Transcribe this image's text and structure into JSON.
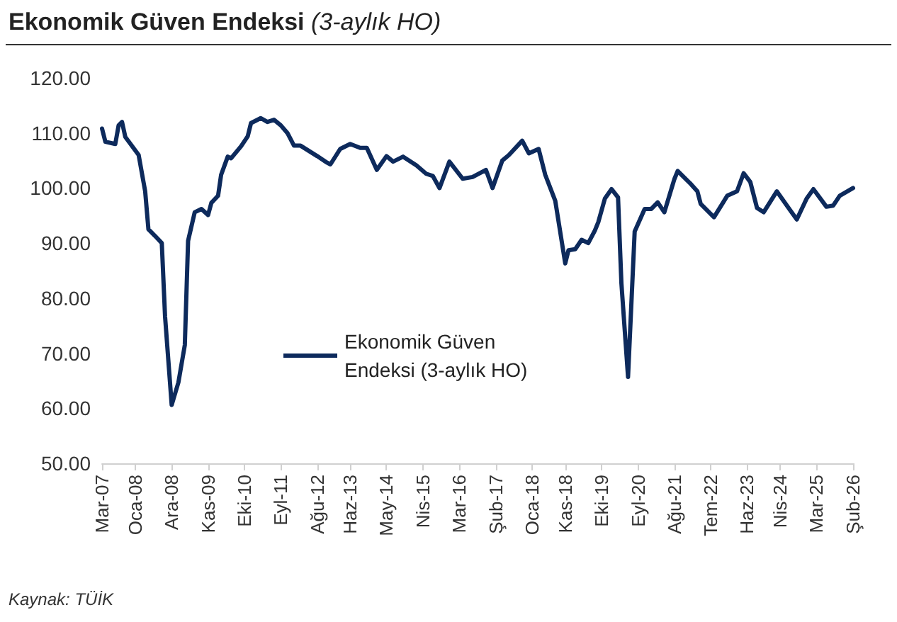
{
  "chart_data": {
    "type": "line",
    "title": "Ekonomik Güven Endeksi",
    "subtitle": "(3-aylık HO)",
    "annotations": [
      "Kaynak: TÜİK"
    ],
    "series": [
      {
        "name": "Ekonomik Güven Endeksi (3-aylık HO)",
        "color": "#0d2a5c",
        "x": [
          "2007-03",
          "2007-04",
          "2007-07",
          "2007-08",
          "2007-09",
          "2007-10",
          "2008-02",
          "2008-04",
          "2008-05",
          "2008-07",
          "2008-09",
          "2008-10",
          "2008-12",
          "2009-02",
          "2009-04",
          "2009-05",
          "2009-07",
          "2009-09",
          "2009-11",
          "2009-12",
          "2010-02",
          "2010-03",
          "2010-05",
          "2010-06",
          "2010-09",
          "2010-11",
          "2010-12",
          "2011-03",
          "2011-05",
          "2011-07",
          "2011-09",
          "2011-11",
          "2012-01",
          "2012-03",
          "2012-08",
          "2012-11",
          "2012-12",
          "2013-03",
          "2013-06",
          "2013-09",
          "2013-11",
          "2014-02",
          "2014-05",
          "2014-07",
          "2014-10",
          "2015-02",
          "2015-05",
          "2015-07",
          "2015-09",
          "2015-12",
          "2016-04",
          "2016-07",
          "2016-11",
          "2017-01",
          "2017-04",
          "2017-06",
          "2017-10",
          "2017-12",
          "2018-03",
          "2018-05",
          "2018-08",
          "2018-11",
          "2018-12",
          "2019-02",
          "2019-04",
          "2019-06",
          "2019-08",
          "2019-09",
          "2019-11",
          "2020-01",
          "2020-03",
          "2020-04",
          "2020-06",
          "2020-08",
          "2020-11",
          "2021-01",
          "2021-03",
          "2021-05",
          "2021-08",
          "2021-09",
          "2022-01",
          "2022-03",
          "2022-04",
          "2022-08",
          "2022-12",
          "2023-03",
          "2023-05",
          "2023-07",
          "2023-09",
          "2023-11",
          "2024-03",
          "2024-07",
          "2024-09",
          "2024-12",
          "2025-02",
          "2025-06",
          "2025-08",
          "2025-10",
          "2026-02"
        ],
        "values": [
          110.8,
          108.4,
          108.0,
          111.4,
          112.0,
          109.3,
          106.0,
          99.4,
          92.5,
          91.3,
          90.0,
          76.7,
          60.6,
          64.7,
          71.5,
          90.4,
          95.6,
          96.2,
          95.1,
          97.3,
          98.6,
          102.4,
          105.7,
          105.4,
          107.6,
          109.4,
          111.8,
          112.7,
          112.0,
          112.4,
          111.4,
          110.0,
          107.7,
          107.7,
          105.8,
          104.6,
          104.3,
          107.1,
          108.0,
          107.3,
          107.3,
          103.3,
          105.8,
          104.8,
          105.7,
          104.1,
          102.6,
          102.2,
          100.0,
          104.8,
          101.7,
          102.0,
          103.3,
          100.0,
          105.0,
          106.0,
          108.6,
          106.3,
          107.1,
          102.4,
          97.7,
          86.3,
          88.7,
          88.9,
          90.6,
          90.0,
          92.3,
          93.8,
          98.1,
          99.8,
          98.3,
          82.7,
          65.7,
          92.1,
          96.2,
          96.2,
          97.4,
          95.6,
          101.6,
          103.1,
          100.7,
          99.4,
          97.1,
          94.7,
          98.6,
          99.4,
          102.7,
          101.1,
          96.4,
          95.6,
          99.4,
          96.0,
          94.3,
          98.1,
          99.8,
          96.6,
          96.8,
          98.6,
          100.0
        ]
      }
    ],
    "xlim": [
      "2007-03",
      "2026-02"
    ],
    "xticks": [
      {
        "value": "2007-03",
        "label": "Mar-07"
      },
      {
        "value": "2008-01",
        "label": "Oca-08"
      },
      {
        "value": "2008-12",
        "label": "Ara-08"
      },
      {
        "value": "2009-11",
        "label": "Kas-09"
      },
      {
        "value": "2010-10",
        "label": "Eki-10"
      },
      {
        "value": "2011-09",
        "label": "Eyl-11"
      },
      {
        "value": "2012-08",
        "label": "Ağu-12"
      },
      {
        "value": "2013-06",
        "label": "Haz-13"
      },
      {
        "value": "2014-05",
        "label": "May-14"
      },
      {
        "value": "2015-04",
        "label": "Nis-15"
      },
      {
        "value": "2016-03",
        "label": "Mar-16"
      },
      {
        "value": "2017-02",
        "label": "Şub-17"
      },
      {
        "value": "2018-01",
        "label": "Oca-18"
      },
      {
        "value": "2018-11",
        "label": "Kas-18"
      },
      {
        "value": "2019-10",
        "label": "Eki-19"
      },
      {
        "value": "2020-09",
        "label": "Eyl-20"
      },
      {
        "value": "2021-08",
        "label": "Ağu-21"
      },
      {
        "value": "2022-07",
        "label": "Tem-22"
      },
      {
        "value": "2023-06",
        "label": "Haz-23"
      },
      {
        "value": "2024-04",
        "label": "Nis-24"
      },
      {
        "value": "2025-03",
        "label": "Mar-25"
      },
      {
        "value": "2026-02",
        "label": "Şub-26"
      }
    ],
    "ylim": [
      50,
      120
    ],
    "yticks": [
      {
        "value": 50,
        "label": "50.00"
      },
      {
        "value": 60,
        "label": "60.00"
      },
      {
        "value": 70,
        "label": "70.00"
      },
      {
        "value": 80,
        "label": "80.00"
      },
      {
        "value": 90,
        "label": "90.00"
      },
      {
        "value": 100,
        "label": "100.00"
      },
      {
        "value": 110,
        "label": "110.00"
      },
      {
        "value": 120,
        "label": "120.00"
      }
    ],
    "grid": false,
    "legend": "center",
    "marker": "none",
    "line_style": "solid"
  }
}
